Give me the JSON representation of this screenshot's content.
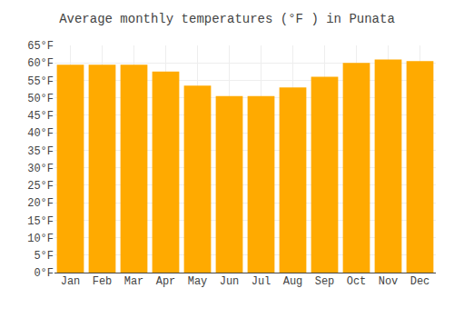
{
  "chart_data": {
    "type": "bar",
    "title": "Average monthly temperatures (°F ) in Punata",
    "categories": [
      "Jan",
      "Feb",
      "Mar",
      "Apr",
      "May",
      "Jun",
      "Jul",
      "Aug",
      "Sep",
      "Oct",
      "Nov",
      "Dec"
    ],
    "values": [
      59.5,
      59.5,
      59.5,
      57.5,
      53.5,
      50.5,
      50.5,
      53.0,
      56.0,
      60.0,
      61.0,
      60.5
    ],
    "color": "#FFAA00",
    "ylim": [
      0,
      65
    ],
    "yticks": [
      {
        "value": 0,
        "label": "0°F"
      },
      {
        "value": 5,
        "label": "5°F"
      },
      {
        "value": 10,
        "label": "10°F"
      },
      {
        "value": 15,
        "label": "15°F"
      },
      {
        "value": 20,
        "label": "20°F"
      },
      {
        "value": 25,
        "label": "25°F"
      },
      {
        "value": 30,
        "label": "30°F"
      },
      {
        "value": 35,
        "label": "35°F"
      },
      {
        "value": 40,
        "label": "40°F"
      },
      {
        "value": 45,
        "label": "45°F"
      },
      {
        "value": 50,
        "label": "50°F"
      },
      {
        "value": 55,
        "label": "55°F"
      },
      {
        "value": 60,
        "label": "60°F"
      },
      {
        "value": 65,
        "label": "65°F"
      }
    ],
    "grid": true
  }
}
